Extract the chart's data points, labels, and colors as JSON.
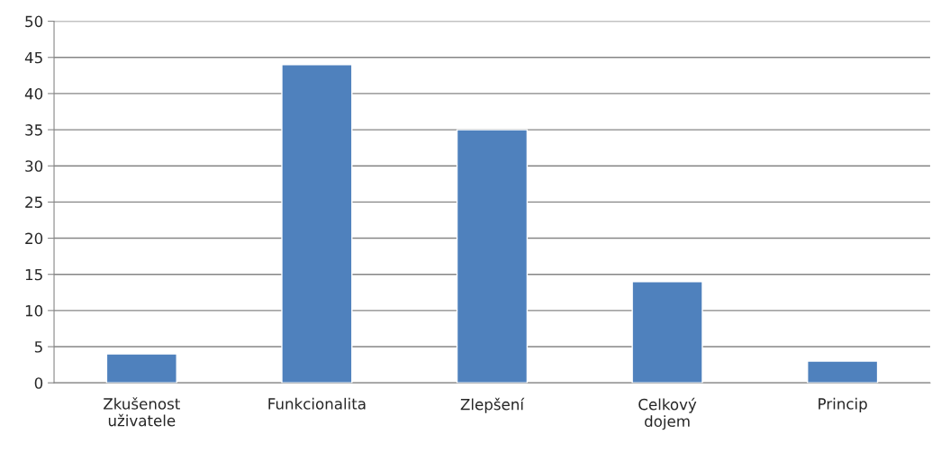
{
  "chart_data": {
    "type": "bar",
    "categories": [
      "Zkušenost\nuživatele",
      "Funkcionalita",
      "Zlepšení",
      "Celkový\ndojem",
      "Princip"
    ],
    "values": [
      4,
      44,
      35,
      14,
      3
    ],
    "color": "#4f81bd",
    "ylim": [
      0,
      50
    ],
    "yticks": [
      0,
      5,
      10,
      15,
      20,
      25,
      30,
      35,
      40,
      45,
      50
    ],
    "grid": "y",
    "legend": false
  }
}
